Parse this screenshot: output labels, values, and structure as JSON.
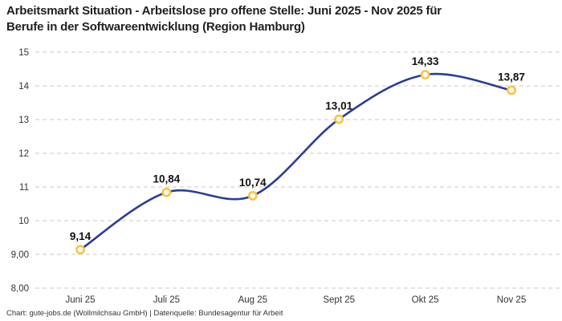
{
  "header": {
    "title_line1": "Arbeitsmarkt Situation - Arbeitslose pro offene Stelle: Juni 2025 - Nov 2025 für",
    "title_line2": "Berufe in der Softwareentwicklung (Region Hamburg)"
  },
  "footer": {
    "credit": "Chart: gute-jobs.de (Wollmilchsau GmbH) | Datenquelle: Bundesagentur für Arbeit"
  },
  "chart_data": {
    "type": "line",
    "title": "Arbeitsmarkt Situation - Arbeitslose pro offene Stelle: Juni 2025 - Nov 2025 für Berufe in der Softwareentwicklung (Region Hamburg)",
    "categories": [
      "Juni 25",
      "Juli 25",
      "Aug 25",
      "Sept 25",
      "Okt 25",
      "Nov 25"
    ],
    "series": [
      {
        "name": "Arbeitslose pro offene Stelle",
        "values": [
          9.14,
          10.84,
          10.74,
          13.01,
          14.33,
          13.87
        ],
        "value_labels": [
          "9,14",
          "10,84",
          "10,74",
          "13,01",
          "14,33",
          "13,87"
        ]
      }
    ],
    "xlabel": "",
    "ylabel": "",
    "ylim": [
      8,
      15
    ],
    "yticks": [
      15,
      14,
      13,
      12,
      11,
      10,
      9,
      8
    ],
    "ytick_labels": [
      "15",
      "14",
      "13",
      "12",
      "11",
      "10",
      "9,00",
      "8,00"
    ],
    "grid": "horizontal-dashed",
    "legend_position": "none",
    "line_smoothing": "spline",
    "colors": {
      "line": "#2b3b9b",
      "marker_ring": "#fcc33d",
      "marker_fill": "#ffffff",
      "grid": "#c9c9c9",
      "tick_text": "#333333",
      "point_label_text": "#111111",
      "title_text": "#1f1f1f"
    }
  }
}
